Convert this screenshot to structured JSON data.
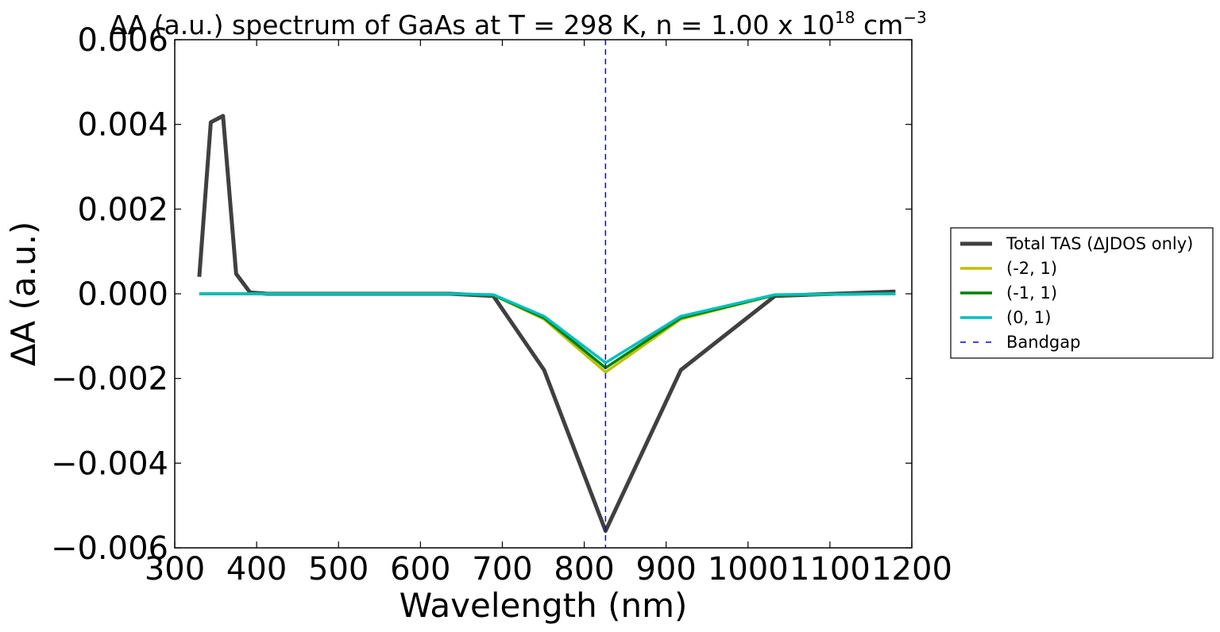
{
  "chart_data": {
    "type": "line",
    "title": "ΔA (a.u.) spectrum of GaAs at T = 298 K, n = 1.00 x 10",
    "title_exp1": "18",
    "title_unit": " cm",
    "title_exp2": "−3",
    "xlabel": "Wavelength (nm)",
    "ylabel": "ΔA (a.u.)",
    "xlim": [
      300,
      1200
    ],
    "ylim": [
      -0.006,
      0.006
    ],
    "xticks": [
      300,
      400,
      500,
      600,
      700,
      800,
      900,
      1000,
      1100,
      1200
    ],
    "xtick_labels": [
      "300",
      "400",
      "500",
      "600",
      "700",
      "800",
      "900",
      "1000",
      "1100",
      "1200"
    ],
    "yticks": [
      -0.006,
      -0.004,
      -0.002,
      0.0,
      0.002,
      0.004,
      0.006
    ],
    "ytick_labels": [
      "−0.006",
      "−0.004",
      "−0.002",
      "0.000",
      "0.002",
      "0.004",
      "0.006"
    ],
    "grid": false,
    "legend_position": "outside-right",
    "bandgap_nm": 826,
    "series": [
      {
        "name": "Total TAS (ΔJDOS only)",
        "color": "#404040",
        "points": [
          [
            330,
            0.0004
          ],
          [
            344,
            0.00405
          ],
          [
            359,
            0.0042
          ],
          [
            375,
            0.00047
          ],
          [
            392,
            3e-05
          ],
          [
            413,
            0.0
          ],
          [
            459,
            0.0
          ],
          [
            517,
            0.0
          ],
          [
            551,
            0.0
          ],
          [
            590,
            0.0
          ],
          [
            636,
            0.0
          ],
          [
            689,
            -5e-05
          ],
          [
            751,
            -0.0018
          ],
          [
            826,
            -0.0056
          ],
          [
            918,
            -0.0018
          ],
          [
            1033,
            -5e-05
          ],
          [
            1180,
            5e-05
          ]
        ]
      },
      {
        "name": "(-2, 1)",
        "color": "#bfbf00",
        "points": [
          [
            330,
            0.0
          ],
          [
            413,
            0.0
          ],
          [
            459,
            0.0
          ],
          [
            517,
            0.0
          ],
          [
            590,
            0.0
          ],
          [
            636,
            0.0
          ],
          [
            689,
            -3e-05
          ],
          [
            751,
            -0.0006
          ],
          [
            826,
            -0.00185
          ],
          [
            918,
            -0.0006
          ],
          [
            1033,
            -3e-05
          ],
          [
            1180,
            0.0
          ]
        ]
      },
      {
        "name": "(-1, 1)",
        "color": "#008000",
        "points": [
          [
            330,
            0.0
          ],
          [
            413,
            0.0
          ],
          [
            459,
            0.0
          ],
          [
            517,
            0.0
          ],
          [
            590,
            0.0
          ],
          [
            636,
            0.0
          ],
          [
            689,
            -3e-05
          ],
          [
            751,
            -0.00057
          ],
          [
            826,
            -0.00175
          ],
          [
            918,
            -0.00057
          ],
          [
            1033,
            -3e-05
          ],
          [
            1180,
            0.0
          ]
        ]
      },
      {
        "name": "(0, 1)",
        "color": "#00bfbf",
        "points": [
          [
            330,
            0.0
          ],
          [
            413,
            0.0
          ],
          [
            459,
            0.0
          ],
          [
            517,
            0.0
          ],
          [
            590,
            0.0
          ],
          [
            636,
            0.0
          ],
          [
            689,
            -2e-05
          ],
          [
            751,
            -0.00053
          ],
          [
            826,
            -0.00163
          ],
          [
            918,
            -0.00053
          ],
          [
            1033,
            -2e-05
          ],
          [
            1180,
            0.0
          ]
        ]
      }
    ],
    "bandgap_label": "Bandgap",
    "bandgap_color": "#0000ff"
  }
}
